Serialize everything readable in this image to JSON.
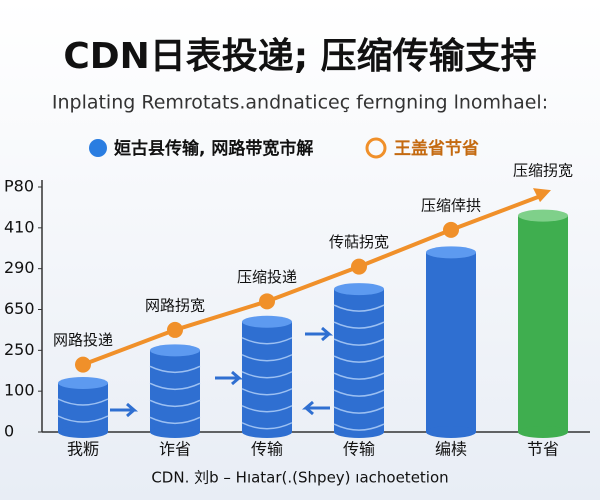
{
  "chart_data": {
    "type": "bar",
    "title": "CDN日表投递; 压缩传输支持",
    "subtitle": "Inplating Remrotats.andnaticeç ferngning lnomhael:",
    "legend_items": [
      "姮古县传输, 网路带宽市解",
      "王盖省节省"
    ],
    "footer": "CDN. 刘b – Hıatar(.(Shpey) ıachoetetion",
    "categories": [
      "我粝",
      "诈省",
      "传输",
      "传输",
      "编椟",
      "节省"
    ],
    "values": [
      1.2,
      2.0,
      2.7,
      3.5,
      4.4,
      5.3
    ],
    "colors": [
      "#2f6fd1",
      "#2f6fd1",
      "#2f6fd1",
      "#2f6fd1",
      "#2f6fd1",
      "#3fae4f"
    ],
    "line": {
      "color": "#f0902a",
      "values": [
        1.65,
        2.5,
        3.2,
        4.05,
        4.95,
        5.8
      ],
      "labels": [
        "网路投递",
        "网路拐宽",
        "压缩投递",
        "传萜拐宽",
        "压缩倖拱",
        "压缩拐宽"
      ]
    },
    "ylim": [
      0,
      6
    ],
    "yticks": [
      0,
      {
        "value": 1,
        "label": "100"
      },
      {
        "value": 2,
        "label": "250"
      },
      {
        "value": 3,
        "label": "650"
      },
      {
        "value": 4,
        "label": "290"
      },
      {
        "value": 5,
        "label": "410"
      },
      {
        "value": 6,
        "label": "P80"
      }
    ]
  }
}
